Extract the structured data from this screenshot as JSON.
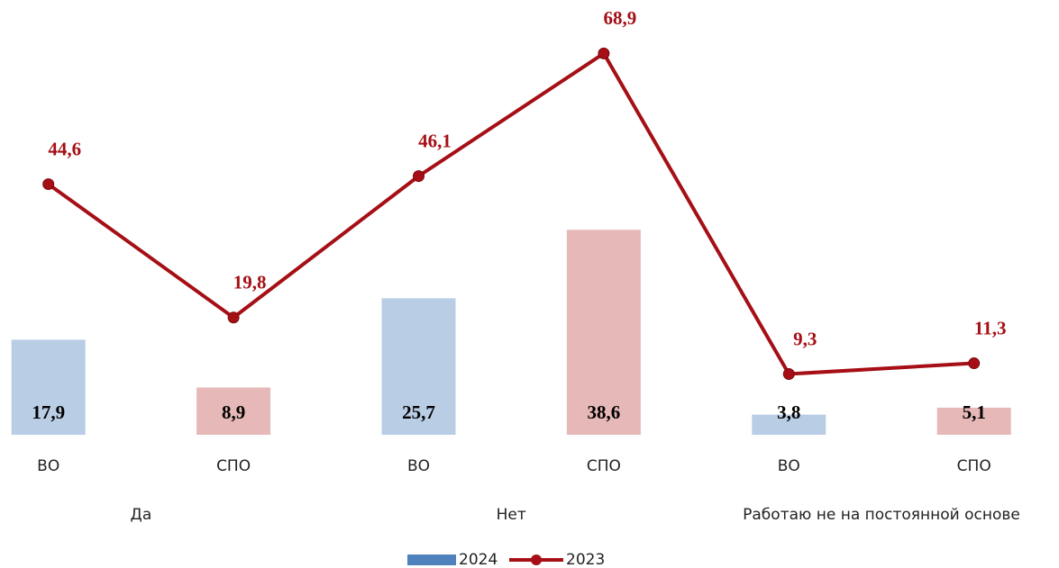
{
  "chart_data": {
    "type": "bar_line",
    "categories": [
      "ВО",
      "СПО",
      "ВО",
      "СПО",
      "ВО",
      "СПО"
    ],
    "groups": [
      "Да",
      "Нет",
      "Работаю не на постоянной основе"
    ],
    "series": [
      {
        "name": "2024",
        "type": "bar",
        "color": "#4f81bd",
        "bar_colors": [
          "#b9cde5",
          "#e6b9b8",
          "#b9cde5",
          "#e6b9b8",
          "#b9cde5",
          "#e6b9b8"
        ],
        "values": [
          17.9,
          8.9,
          25.7,
          38.6,
          3.8,
          5.1
        ],
        "value_labels": [
          "17,9",
          "8,9",
          "25,7",
          "38,6",
          "3,8",
          "5,1"
        ]
      },
      {
        "name": "2023",
        "type": "line",
        "axis": "y2",
        "color": "#a50f15",
        "values": [
          44.6,
          19.8,
          46.1,
          68.9,
          9.3,
          11.3
        ],
        "value_labels": [
          "44,6",
          "19,8",
          "46,1",
          "68,9",
          "9,3",
          "11,3"
        ]
      }
    ],
    "ylim": [
      0,
      80
    ],
    "y2lim": [
      -2,
      77
    ],
    "legend": "bottom"
  }
}
